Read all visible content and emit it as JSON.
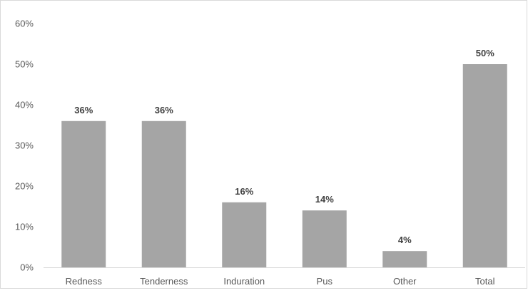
{
  "chart_data": {
    "type": "bar",
    "title": "",
    "xlabel": "",
    "ylabel": "",
    "categories": [
      "Redness",
      "Tenderness",
      "Induration",
      "Pus",
      "Other",
      "Total"
    ],
    "values": [
      36,
      36,
      16,
      14,
      4,
      50
    ],
    "value_suffix": "%",
    "data_labels": [
      "36%",
      "36%",
      "16%",
      "14%",
      "4%",
      "50%"
    ],
    "y_ticks": [
      "0%",
      "10%",
      "20%",
      "30%",
      "40%",
      "50%",
      "60%"
    ],
    "ylim": [
      0,
      60
    ],
    "grid": false,
    "legend": "none",
    "bar_color": "#a5a5a5",
    "axis_color": "#d9d9d9"
  }
}
